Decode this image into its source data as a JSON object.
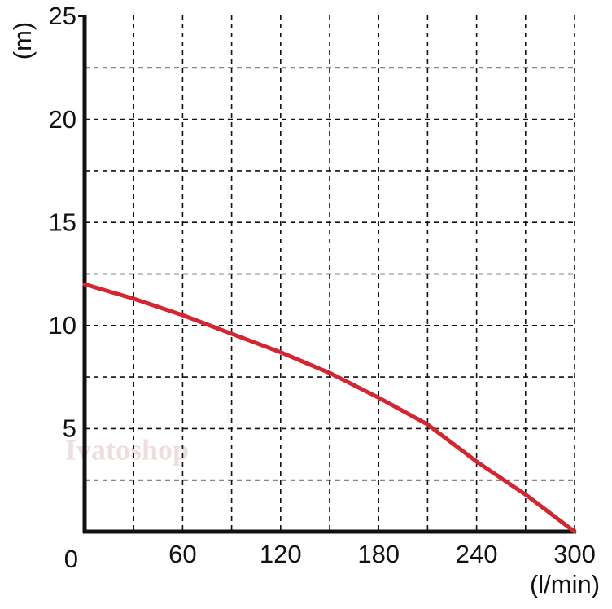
{
  "chart_data": {
    "type": "line",
    "y_label": "(m)",
    "x_label": "(l/min)",
    "watermark": "Ivatoshop",
    "x": [
      0,
      30,
      60,
      90,
      120,
      150,
      180,
      210,
      240,
      270,
      300
    ],
    "values": [
      12,
      11.3,
      10.5,
      9.6,
      8.7,
      7.7,
      6.5,
      5.2,
      3.4,
      1.8,
      0
    ],
    "color": "#d42630",
    "xlim": [
      0,
      300
    ],
    "ylim": [
      0,
      25
    ],
    "xticks": [
      0,
      60,
      120,
      180,
      240,
      300
    ],
    "yticks": [
      5,
      10,
      15,
      20,
      25
    ],
    "xminor": [
      30,
      90,
      150,
      210,
      270
    ],
    "yminor": [
      2.5,
      7.5,
      12.5,
      17.5,
      22.5
    ],
    "grid": true
  }
}
